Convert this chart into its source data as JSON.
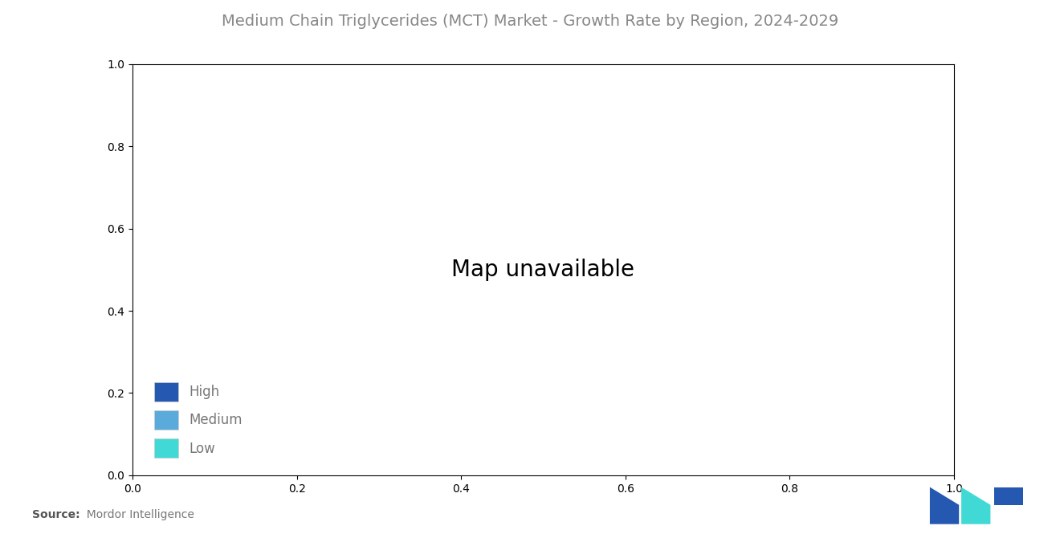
{
  "title": "Medium Chain Triglycerides (MCT) Market - Growth Rate by Region, 2024-2029",
  "title_color": "#888888",
  "title_fontsize": 14,
  "background_color": "#ffffff",
  "legend_items": [
    {
      "label": "High",
      "color": "#2558b0"
    },
    {
      "label": "Medium",
      "color": "#5aabdc"
    },
    {
      "label": "Low",
      "color": "#40d9d5"
    }
  ],
  "source_text_bold": "Source:",
  "source_text_normal": "  Mordor Intelligence",
  "ocean_color": "#ffffff",
  "border_color": "#ffffff",
  "border_linewidth": 0.5,
  "country_colors": {
    "United States of America": "#5aabdc",
    "Canada": "#9e9e9e",
    "Mexico": "#5aabdc",
    "Guatemala": "#5aabdc",
    "Belize": "#5aabdc",
    "Honduras": "#5aabdc",
    "El Salvador": "#5aabdc",
    "Nicaragua": "#5aabdc",
    "Costa Rica": "#5aabdc",
    "Panama": "#5aabdc",
    "Cuba": "#5aabdc",
    "Jamaica": "#5aabdc",
    "Haiti": "#5aabdc",
    "Dominican Republic": "#5aabdc",
    "Puerto Rico": "#5aabdc",
    "Trinidad and Tobago": "#5aabdc",
    "Brazil": "#40d9d5",
    "Argentina": "#40d9d5",
    "Colombia": "#40d9d5",
    "Peru": "#40d9d5",
    "Venezuela": "#40d9d5",
    "Chile": "#40d9d5",
    "Bolivia": "#40d9d5",
    "Paraguay": "#40d9d5",
    "Uruguay": "#40d9d5",
    "Ecuador": "#40d9d5",
    "Guyana": "#40d9d5",
    "Suriname": "#40d9d5",
    "French Guiana": "#40d9d5",
    "United Kingdom": "#5aabdc",
    "France": "#5aabdc",
    "Germany": "#5aabdc",
    "Spain": "#5aabdc",
    "Italy": "#5aabdc",
    "Portugal": "#5aabdc",
    "Netherlands": "#5aabdc",
    "Belgium": "#5aabdc",
    "Switzerland": "#5aabdc",
    "Austria": "#5aabdc",
    "Sweden": "#5aabdc",
    "Norway": "#5aabdc",
    "Finland": "#5aabdc",
    "Denmark": "#5aabdc",
    "Poland": "#5aabdc",
    "Czech Republic": "#5aabdc",
    "Czechia": "#5aabdc",
    "Slovakia": "#5aabdc",
    "Hungary": "#5aabdc",
    "Romania": "#5aabdc",
    "Bulgaria": "#5aabdc",
    "Greece": "#5aabdc",
    "Serbia": "#5aabdc",
    "Croatia": "#5aabdc",
    "Ukraine": "#5aabdc",
    "Belarus": "#5aabdc",
    "Estonia": "#5aabdc",
    "Latvia": "#5aabdc",
    "Lithuania": "#5aabdc",
    "Ireland": "#5aabdc",
    "Iceland": "#5aabdc",
    "Luxembourg": "#5aabdc",
    "Malta": "#5aabdc",
    "Cyprus": "#5aabdc",
    "Moldova": "#5aabdc",
    "Albania": "#5aabdc",
    "North Macedonia": "#5aabdc",
    "Bosnia and Herzegovina": "#5aabdc",
    "Montenegro": "#5aabdc",
    "Slovenia": "#5aabdc",
    "Kosovo": "#5aabdc",
    "Russia": "#9e9e9e",
    "China": "#2558b0",
    "India": "#2558b0",
    "Japan": "#2558b0",
    "South Korea": "#2558b0",
    "North Korea": "#2558b0",
    "Indonesia": "#2558b0",
    "Malaysia": "#2558b0",
    "Thailand": "#2558b0",
    "Vietnam": "#2558b0",
    "Philippines": "#2558b0",
    "Singapore": "#2558b0",
    "Bangladesh": "#2558b0",
    "Pakistan": "#2558b0",
    "Sri Lanka": "#2558b0",
    "Myanmar": "#2558b0",
    "Cambodia": "#2558b0",
    "Laos": "#2558b0",
    "Mongolia": "#2558b0",
    "Nepal": "#2558b0",
    "Bhutan": "#2558b0",
    "Afghanistan": "#2558b0",
    "Timor-Leste": "#2558b0",
    "Brunei": "#2558b0",
    "Taiwan": "#2558b0",
    "Kazakhstan": "#2558b0",
    "Uzbekistan": "#2558b0",
    "Turkmenistan": "#2558b0",
    "Kyrgyzstan": "#2558b0",
    "Tajikistan": "#2558b0",
    "Azerbaijan": "#2558b0",
    "Georgia": "#2558b0",
    "Armenia": "#2558b0",
    "Turkey": "#2558b0",
    "Iran": "#40d9d5",
    "Iraq": "#40d9d5",
    "Saudi Arabia": "#40d9d5",
    "United Arab Emirates": "#40d9d5",
    "Qatar": "#40d9d5",
    "Kuwait": "#40d9d5",
    "Oman": "#40d9d5",
    "Yemen": "#40d9d5",
    "Jordan": "#40d9d5",
    "Syria": "#40d9d5",
    "Israel": "#40d9d5",
    "Lebanon": "#40d9d5",
    "Palestine": "#40d9d5",
    "Bahrain": "#40d9d5",
    "Egypt": "#40d9d5",
    "Libya": "#40d9d5",
    "Tunisia": "#40d9d5",
    "Algeria": "#40d9d5",
    "Morocco": "#40d9d5",
    "Western Sahara": "#40d9d5",
    "Mauritania": "#40d9d5",
    "Mali": "#40d9d5",
    "Niger": "#40d9d5",
    "Chad": "#40d9d5",
    "Sudan": "#40d9d5",
    "South Sudan": "#40d9d5",
    "Ethiopia": "#40d9d5",
    "Somalia": "#40d9d5",
    "Kenya": "#40d9d5",
    "Tanzania": "#40d9d5",
    "Uganda": "#40d9d5",
    "Rwanda": "#40d9d5",
    "Burundi": "#40d9d5",
    "Democratic Republic of the Congo": "#40d9d5",
    "Republic of the Congo": "#40d9d5",
    "Central African Republic": "#40d9d5",
    "Cameroon": "#40d9d5",
    "Nigeria": "#40d9d5",
    "Ghana": "#40d9d5",
    "Ivory Coast": "#40d9d5",
    "Cote d'Ivoire": "#40d9d5",
    "Senegal": "#40d9d5",
    "Guinea": "#40d9d5",
    "Sierra Leone": "#40d9d5",
    "Liberia": "#40d9d5",
    "Togo": "#40d9d5",
    "Benin": "#40d9d5",
    "Burkina Faso": "#40d9d5",
    "Gabon": "#40d9d5",
    "Equatorial Guinea": "#40d9d5",
    "Sao Tome and Principe": "#40d9d5",
    "Angola": "#40d9d5",
    "Zambia": "#40d9d5",
    "Zimbabwe": "#40d9d5",
    "Mozambique": "#40d9d5",
    "Malawi": "#40d9d5",
    "Botswana": "#40d9d5",
    "Namibia": "#40d9d5",
    "South Africa": "#40d9d5",
    "Lesotho": "#40d9d5",
    "Eswatini": "#40d9d5",
    "Swaziland": "#40d9d5",
    "Madagascar": "#40d9d5",
    "Comoros": "#40d9d5",
    "Djibouti": "#40d9d5",
    "Eritrea": "#40d9d5",
    "Guinea-Bissau": "#40d9d5",
    "Gambia": "#40d9d5",
    "Cape Verde": "#40d9d5",
    "Seychelles": "#40d9d5",
    "Mauritius": "#40d9d5",
    "Australia": "#2558b0",
    "New Zealand": "#2558b0",
    "Papua New Guinea": "#2558b0",
    "Fiji": "#2558b0",
    "Solomon Islands": "#2558b0",
    "Vanuatu": "#2558b0",
    "Samoa": "#2558b0"
  },
  "default_color": "#d0e8f0"
}
